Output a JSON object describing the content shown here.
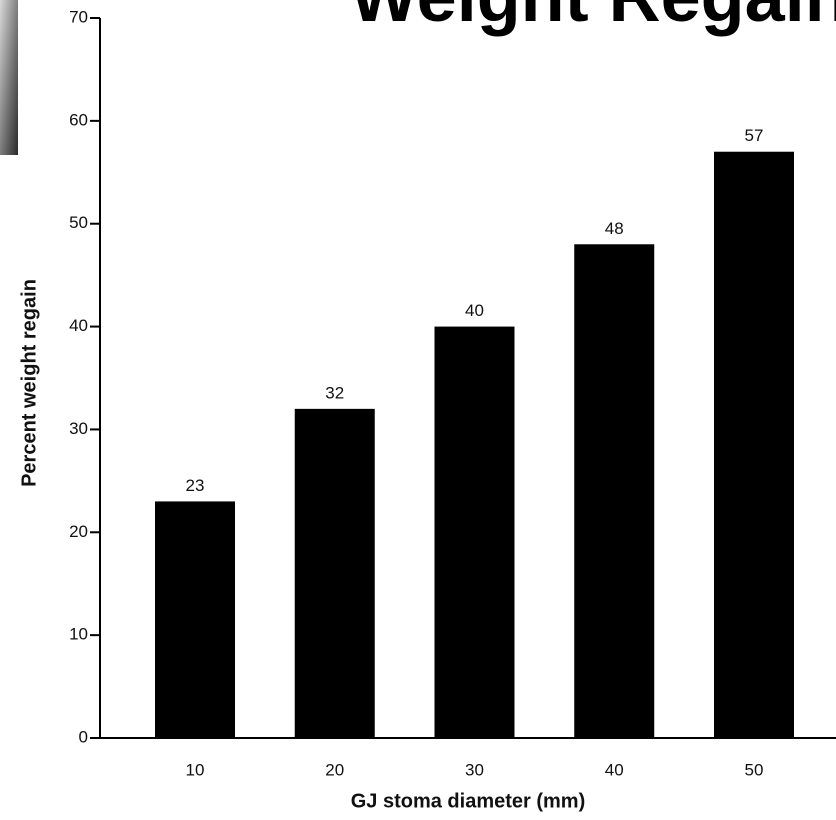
{
  "chart_data": {
    "type": "bar",
    "title": "Weight Regain",
    "x_label": "GJ stoma diameter (mm)",
    "y_label": "Percent weight regain",
    "categories": [
      "10",
      "20",
      "30",
      "40",
      "50"
    ],
    "values": [
      23,
      32,
      40,
      48,
      57
    ],
    "color": "#000000",
    "ylim": [
      0,
      70
    ],
    "yticks": [
      0,
      10,
      20,
      30,
      40,
      50,
      60,
      70
    ],
    "grid": false
  }
}
